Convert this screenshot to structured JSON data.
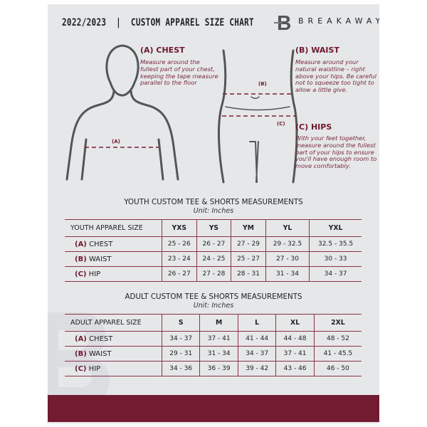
{
  "header": {
    "title": "2022/2023  |  CUSTOM APPAREL SIZE CHART",
    "brand": "BREAKAWAY",
    "logo_letter": "B"
  },
  "measures": {
    "chest": {
      "title": "(A) CHEST",
      "text": "Measure around the fullest part of your chest, keeping the tape measure parallel to the floor",
      "marker": "(A)"
    },
    "waist": {
      "title": "(B) WAIST",
      "text": "Measure around your natural waistline – right above your hips. Be careful not to squeeze too tight to allow a little give.",
      "marker": "(B)"
    },
    "hips": {
      "title": "(C) HIPS",
      "text": "With your feet together, measure around the fullest part of your hips to ensure you'll have enough room to move comfortably.",
      "marker": "(C)"
    }
  },
  "youth": {
    "title": "YOUTH CUSTOM TEE & SHORTS MEASUREMENTS",
    "unit": "Unit: Inches",
    "header": [
      "YOUTH APPAREL SIZE",
      "YXS",
      "YS",
      "YM",
      "YL",
      "YXL"
    ],
    "rows": [
      {
        "code": "(A)",
        "name": "CHEST",
        "values": [
          "25 - 26",
          "26 - 27",
          "27 - 29",
          "29 - 32.5",
          "32.5 - 35.5"
        ]
      },
      {
        "code": "(B)",
        "name": "WAIST",
        "values": [
          "23 - 24",
          "24 - 25",
          "25 - 27",
          "27 - 30",
          "30 - 33"
        ]
      },
      {
        "code": "(C)",
        "name": "HIP",
        "values": [
          "26 - 27",
          "27 - 28",
          "28 - 31",
          "31 - 34",
          "34 - 37"
        ]
      }
    ]
  },
  "adult": {
    "title": "ADULT CUSTOM TEE & SHORTS MEASUREMENTS",
    "unit": "Unit: Inches",
    "header": [
      "ADULT APPAREL SIZE",
      "S",
      "M",
      "L",
      "XL",
      "2XL"
    ],
    "rows": [
      {
        "code": "(A)",
        "name": "CHEST",
        "values": [
          "34 - 37",
          "37 - 41",
          "41 - 44",
          "44 - 48",
          "48 - 52"
        ]
      },
      {
        "code": "(B)",
        "name": "WAIST",
        "values": [
          "29 - 31",
          "31 - 34",
          "34 - 37",
          "37 - 41",
          "41 - 45.5"
        ]
      },
      {
        "code": "(C)",
        "name": "HIP",
        "values": [
          "34 - 36",
          "36 - 39",
          "39 - 42",
          "43 - 46",
          "46 - 50"
        ]
      }
    ]
  },
  "colors": {
    "accent": "#721b31",
    "panel": "#e6e7e9"
  }
}
